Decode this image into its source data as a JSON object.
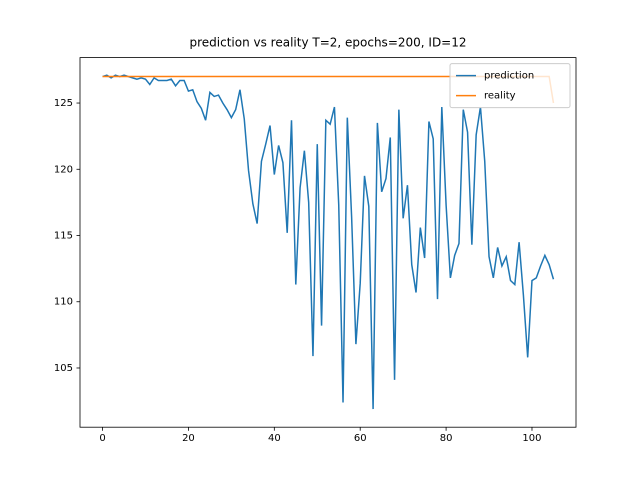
{
  "chart_data": {
    "type": "line",
    "title": "prediction vs reality T=2, epochs=200, ID=12",
    "x": [
      0,
      1,
      2,
      3,
      4,
      5,
      6,
      7,
      8,
      9,
      10,
      11,
      12,
      13,
      14,
      15,
      16,
      17,
      18,
      19,
      20,
      21,
      22,
      23,
      24,
      25,
      26,
      27,
      28,
      29,
      30,
      31,
      32,
      33,
      34,
      35,
      36,
      37,
      38,
      39,
      40,
      41,
      42,
      43,
      44,
      45,
      46,
      47,
      48,
      49,
      50,
      51,
      52,
      53,
      54,
      55,
      56,
      57,
      58,
      59,
      60,
      61,
      62,
      63,
      64,
      65,
      66,
      67,
      68,
      69,
      70,
      71,
      72,
      73,
      74,
      75,
      76,
      77,
      78,
      79,
      80,
      81,
      82,
      83,
      84,
      85,
      86,
      87,
      88,
      89,
      90,
      91,
      92,
      93,
      94,
      95,
      96,
      97,
      98,
      99,
      100,
      101,
      102,
      103,
      104,
      105
    ],
    "series": [
      {
        "name": "prediction",
        "color": "#1f77b4",
        "values": [
          127,
          127.1,
          126.9,
          127.1,
          127,
          127.1,
          127,
          126.9,
          126.8,
          126.9,
          126.8,
          126.4,
          126.9,
          126.7,
          126.7,
          126.7,
          126.8,
          126.3,
          126.7,
          126.7,
          125.9,
          126,
          125.1,
          124.6,
          123.7,
          125.8,
          125.5,
          125.6,
          125,
          124.5,
          123.9,
          124.5,
          126,
          123.8,
          119.9,
          117.4,
          115.9,
          120.6,
          121.9,
          123.3,
          119.6,
          121.8,
          120.5,
          115.2,
          123.7,
          111.3,
          118.6,
          121.4,
          117.5,
          105.9,
          121.9,
          108.2,
          123.7,
          123.4,
          124.7,
          117.3,
          102.4,
          123.9,
          116.4,
          106.8,
          111.4,
          119.5,
          117.2,
          101.9,
          123.5,
          118.3,
          119.3,
          122.4,
          104.1,
          124.5,
          116.3,
          118.8,
          112.8,
          110.7,
          115.6,
          113.3,
          123.6,
          122.3,
          110.2,
          124.7,
          117.3,
          111.8,
          113.5,
          114.4,
          124.5,
          122.8,
          114.3,
          122.6,
          124.7,
          120.6,
          113.4,
          111.8,
          114.1,
          112.7,
          113.4,
          111.6,
          111.3,
          114.5,
          110.5,
          105.8,
          111.6,
          111.8,
          112.7,
          113.5,
          112.8,
          111.7
        ]
      },
      {
        "name": "reality",
        "color": "#ff7f0e",
        "values": [
          127,
          127,
          127,
          127,
          127,
          127,
          127,
          127,
          127,
          127,
          127,
          127,
          127,
          127,
          127,
          127,
          127,
          127,
          127,
          127,
          127,
          127,
          127,
          127,
          127,
          127,
          127,
          127,
          127,
          127,
          127,
          127,
          127,
          127,
          127,
          127,
          127,
          127,
          127,
          127,
          127,
          127,
          127,
          127,
          127,
          127,
          127,
          127,
          127,
          127,
          127,
          127,
          127,
          127,
          127,
          127,
          127,
          127,
          127,
          127,
          127,
          127,
          127,
          127,
          127,
          127,
          127,
          127,
          127,
          127,
          127,
          127,
          127,
          127,
          127,
          127,
          127,
          127,
          127,
          127,
          127,
          127,
          127,
          127,
          127,
          127,
          127,
          127,
          127,
          127,
          127,
          127,
          127,
          127,
          127,
          127,
          127,
          127,
          127,
          127,
          127,
          127,
          127,
          127,
          127,
          125
        ]
      }
    ],
    "xlim": [
      -5.25,
      110.25
    ],
    "ylim": [
      100.53,
      128.43
    ],
    "xticks": [
      0,
      20,
      40,
      60,
      80,
      100
    ],
    "yticks": [
      105,
      110,
      115,
      120,
      125
    ],
    "grid": false,
    "legend": "upper right"
  }
}
